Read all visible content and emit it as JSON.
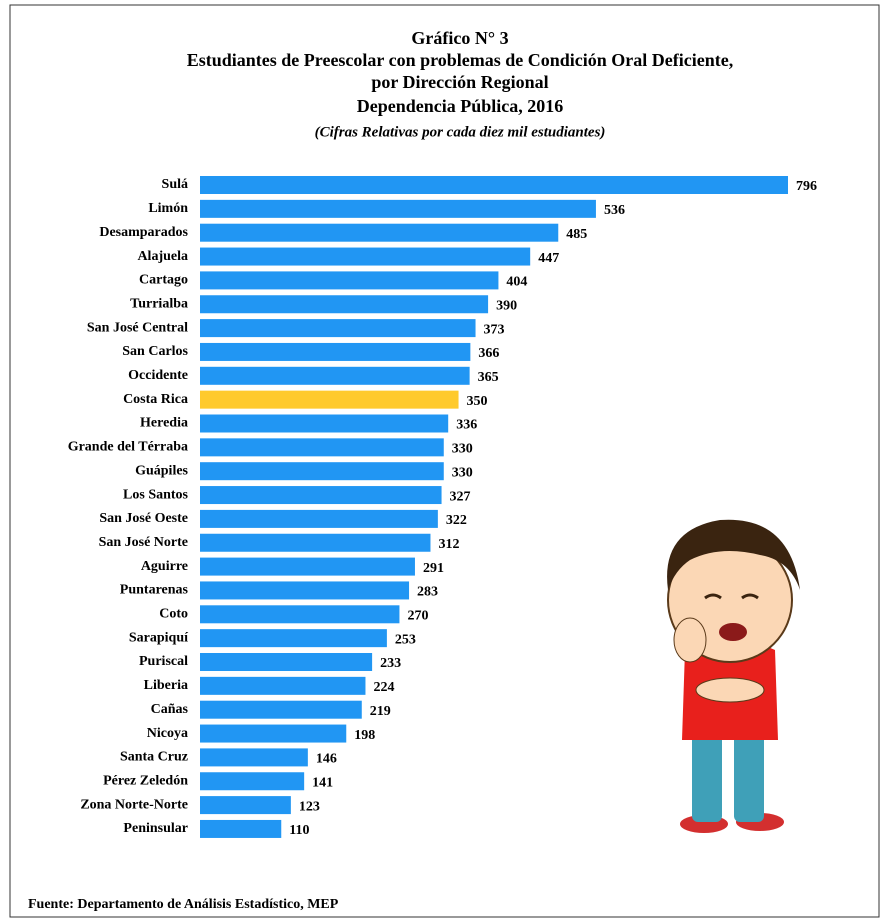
{
  "chart_data": {
    "type": "bar",
    "orientation": "horizontal",
    "title": [
      "Gráfico N° 3",
      "Estudiantes de Preescolar con problemas de Condición Oral Deficiente,",
      "por Dirección Regional",
      "Dependencia Pública, 2016"
    ],
    "subtitle": "(Cifras Relativas por cada diez mil estudiantes)",
    "categories": [
      "Sulá",
      "Limón",
      "Desamparados",
      "Alajuela",
      "Cartago",
      "Turrialba",
      "San José Central",
      "San Carlos",
      "Occidente",
      "Costa Rica",
      "Heredia",
      "Grande del Térraba",
      "Guápiles",
      "Los Santos",
      "San José Oeste",
      "San José Norte",
      "Aguirre",
      "Puntarenas",
      "Coto",
      "Sarapiquí",
      "Puriscal",
      "Liberia",
      "Cañas",
      "Nicoya",
      "Santa Cruz",
      "Pérez Zeledón",
      "Zona Norte-Norte",
      "Peninsular"
    ],
    "values": [
      796,
      536,
      485,
      447,
      404,
      390,
      373,
      366,
      365,
      350,
      336,
      330,
      330,
      327,
      322,
      312,
      291,
      283,
      270,
      253,
      233,
      224,
      219,
      198,
      146,
      141,
      123,
      110
    ],
    "colors": [
      "#2196f3",
      "#2196f3",
      "#2196f3",
      "#2196f3",
      "#2196f3",
      "#2196f3",
      "#2196f3",
      "#2196f3",
      "#2196f3",
      "#ffca2c",
      "#2196f3",
      "#2196f3",
      "#2196f3",
      "#2196f3",
      "#2196f3",
      "#2196f3",
      "#2196f3",
      "#2196f3",
      "#2196f3",
      "#2196f3",
      "#2196f3",
      "#2196f3",
      "#2196f3",
      "#2196f3",
      "#2196f3",
      "#2196f3",
      "#2196f3",
      "#2196f3"
    ],
    "source": "Fuente: Departamento de Análisis Estadístico, MEP"
  }
}
